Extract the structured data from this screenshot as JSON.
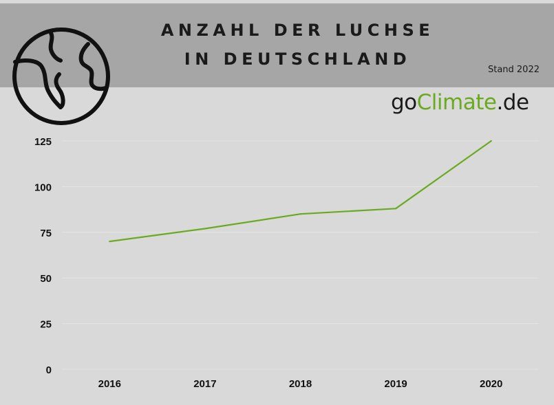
{
  "header": {
    "title_line_1": "ANZAHL DER LUCHSE",
    "title_line_2": "IN DEUTSCHLAND",
    "stand": "Stand 2022"
  },
  "brand": {
    "prefix": "go",
    "highlight": "Climate",
    "suffix": ".de",
    "accent_color": "#6aaa1e"
  },
  "icons": {
    "globe": "globe-icon"
  },
  "chart_data": {
    "type": "line",
    "categories": [
      "2016",
      "2017",
      "2018",
      "2019",
      "2020"
    ],
    "series": [
      {
        "values": [
          70,
          77,
          85,
          88,
          125
        ],
        "color": "#6aaa1e"
      }
    ],
    "y_ticks": [
      0,
      25,
      50,
      75,
      100,
      125
    ],
    "ylim": [
      0,
      125
    ],
    "grid": true,
    "legend": "none"
  }
}
